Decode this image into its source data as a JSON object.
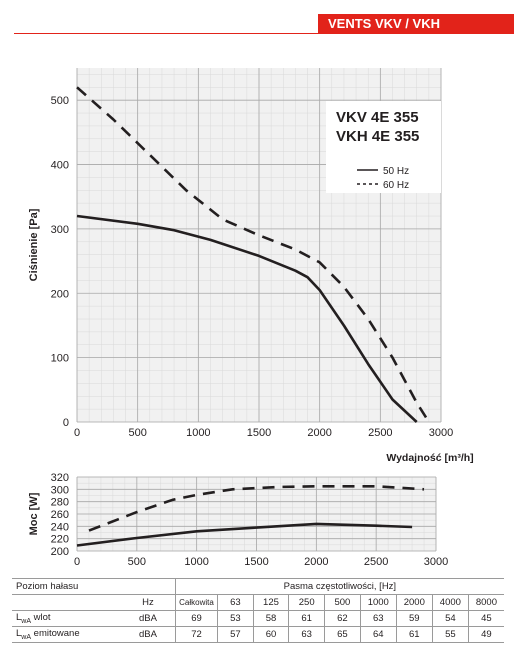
{
  "header": {
    "brand": "VENTS VKV / VKH"
  },
  "chart_data": [
    {
      "type": "line",
      "title": "",
      "model_labels": [
        "VKV 4E 355",
        "VKH 4E 355"
      ],
      "xlabel": "Wydajność [m³/h]",
      "ylabel": "Ciśnienie [Pa]",
      "xlim": [
        0,
        3000
      ],
      "ylim": [
        0,
        550
      ],
      "x_ticks": [
        0,
        500,
        1000,
        1500,
        2000,
        2500,
        3000
      ],
      "y_ticks": [
        0,
        100,
        200,
        300,
        400,
        500
      ],
      "grid": true,
      "legend": "top-right",
      "series": [
        {
          "name": "50 Hz",
          "style": "solid",
          "x": [
            0,
            500,
            800,
            1100,
            1500,
            1800,
            1900,
            2000,
            2200,
            2400,
            2600,
            2800
          ],
          "y": [
            320,
            308,
            298,
            283,
            258,
            235,
            225,
            205,
            150,
            90,
            35,
            0
          ]
        },
        {
          "name": "60 Hz",
          "style": "dashed",
          "x": [
            0,
            300,
            600,
            900,
            1200,
            1500,
            1800,
            2000,
            2200,
            2400,
            2600,
            2800,
            2900
          ],
          "y": [
            520,
            470,
            415,
            360,
            315,
            290,
            268,
            248,
            210,
            160,
            100,
            30,
            0
          ]
        }
      ]
    },
    {
      "type": "line",
      "ylabel": "Moc [W]",
      "xlim": [
        0,
        3000
      ],
      "ylim": [
        200,
        320
      ],
      "x_ticks": [
        0,
        500,
        1000,
        1500,
        2000,
        2500,
        3000
      ],
      "y_ticks": [
        200,
        220,
        240,
        260,
        280,
        300,
        320
      ],
      "grid": true,
      "series": [
        {
          "name": "50 Hz",
          "style": "solid",
          "x": [
            0,
            500,
            1000,
            1500,
            2000,
            2500,
            2800
          ],
          "y": [
            209,
            221,
            232,
            238,
            244,
            241,
            239
          ]
        },
        {
          "name": "60 Hz",
          "style": "dashed",
          "x": [
            100,
            500,
            800,
            1000,
            1300,
            1700,
            2000,
            2500,
            2900
          ],
          "y": [
            233,
            263,
            283,
            291,
            300,
            304,
            305,
            305,
            300
          ]
        }
      ]
    }
  ],
  "noise_table": {
    "title": "Poziom hałasu",
    "bands_title": "Pasma częstotliwości, [Hz]",
    "unit_header": "Hz",
    "total_header": "Całkowita",
    "bands": [
      "63",
      "125",
      "250",
      "500",
      "1000",
      "2000",
      "4000",
      "8000"
    ],
    "rows": [
      {
        "label_main": "L",
        "label_sub": "wA",
        "label_rest": " wlot",
        "unit": "dBA",
        "total": "69",
        "values": [
          "53",
          "58",
          "61",
          "62",
          "63",
          "59",
          "54",
          "45"
        ]
      },
      {
        "label_main": "L",
        "label_sub": "wA",
        "label_rest": " emitowane",
        "unit": "dBA",
        "total": "72",
        "values": [
          "57",
          "60",
          "63",
          "65",
          "64",
          "61",
          "55",
          "49"
        ]
      }
    ]
  }
}
